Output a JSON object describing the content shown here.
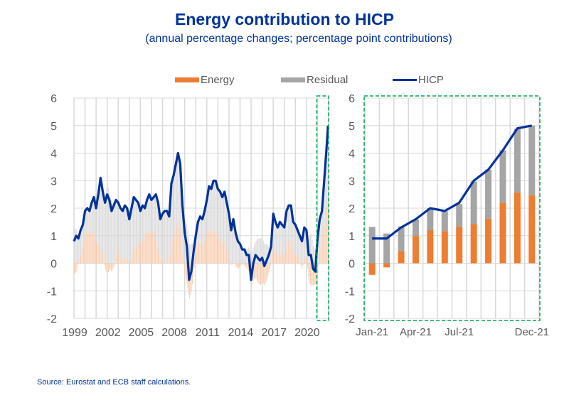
{
  "title": "Energy contribution to HICP",
  "subtitle": "(annual percentage changes; percentage point contributions)",
  "legend": [
    {
      "label": "Energy",
      "type": "bar",
      "color": "#ED7D31"
    },
    {
      "label": "Residual",
      "type": "bar",
      "color": "#A5A5A5"
    },
    {
      "label": "HICP",
      "type": "line",
      "color": "#003299"
    }
  ],
  "source": "Source: Eurostat and ECB staff calculations.",
  "colors": {
    "energy": "#ED7D31",
    "energy_light": "#F8CBAD",
    "residual": "#A5A5A5",
    "residual_light": "#D9D9D9",
    "hicp": "#003299",
    "highlight": "#00A651",
    "grid": "#D9D9D9",
    "axis_text": "#595959"
  },
  "chart_data": [
    {
      "type": "bar",
      "subtype": "stacked bar with line overlay (monthly)",
      "title": "",
      "xlabel": "",
      "ylabel": "",
      "ylim": [
        -2,
        6
      ],
      "yticks": [
        6,
        5,
        4,
        3,
        2,
        1,
        0,
        -1,
        -2
      ],
      "xlim": [
        1999,
        2022
      ],
      "xtick_labels": [
        "1999",
        "2002",
        "2005",
        "2008",
        "2011",
        "2014",
        "2017",
        "2020"
      ],
      "grid": true,
      "legend_position": "top",
      "highlight_box": "2021 (dashed green, corresponds to right panel)",
      "hicp_series": {
        "name": "HICP",
        "points": [
          [
            1999.0,
            0.8
          ],
          [
            1999.2,
            1.0
          ],
          [
            1999.4,
            0.9
          ],
          [
            1999.6,
            1.2
          ],
          [
            1999.8,
            1.4
          ],
          [
            2000.0,
            1.9
          ],
          [
            2000.2,
            2.0
          ],
          [
            2000.4,
            1.9
          ],
          [
            2000.6,
            2.2
          ],
          [
            2000.8,
            2.4
          ],
          [
            2001.0,
            2.0
          ],
          [
            2001.2,
            2.5
          ],
          [
            2001.4,
            3.1
          ],
          [
            2001.6,
            2.6
          ],
          [
            2001.8,
            2.2
          ],
          [
            2002.0,
            2.5
          ],
          [
            2002.2,
            2.3
          ],
          [
            2002.4,
            1.9
          ],
          [
            2002.6,
            2.1
          ],
          [
            2002.8,
            2.3
          ],
          [
            2003.0,
            2.2
          ],
          [
            2003.2,
            2.0
          ],
          [
            2003.4,
            1.9
          ],
          [
            2003.6,
            2.1
          ],
          [
            2003.8,
            2.0
          ],
          [
            2004.0,
            1.6
          ],
          [
            2004.2,
            2.0
          ],
          [
            2004.4,
            2.4
          ],
          [
            2004.6,
            2.3
          ],
          [
            2004.8,
            2.2
          ],
          [
            2005.0,
            1.9
          ],
          [
            2005.2,
            2.1
          ],
          [
            2005.4,
            2.0
          ],
          [
            2005.6,
            2.3
          ],
          [
            2005.8,
            2.5
          ],
          [
            2006.0,
            2.3
          ],
          [
            2006.2,
            2.4
          ],
          [
            2006.4,
            2.5
          ],
          [
            2006.6,
            2.2
          ],
          [
            2006.8,
            1.6
          ],
          [
            2007.0,
            1.8
          ],
          [
            2007.2,
            1.9
          ],
          [
            2007.4,
            1.9
          ],
          [
            2007.6,
            1.7
          ],
          [
            2007.8,
            2.9
          ],
          [
            2008.0,
            3.2
          ],
          [
            2008.2,
            3.6
          ],
          [
            2008.4,
            4.0
          ],
          [
            2008.6,
            3.6
          ],
          [
            2008.8,
            2.1
          ],
          [
            2009.0,
            1.1
          ],
          [
            2009.2,
            0.6
          ],
          [
            2009.4,
            -0.6
          ],
          [
            2009.6,
            -0.3
          ],
          [
            2009.8,
            0.4
          ],
          [
            2010.0,
            1.0
          ],
          [
            2010.2,
            1.5
          ],
          [
            2010.4,
            1.7
          ],
          [
            2010.6,
            1.6
          ],
          [
            2010.8,
            1.9
          ],
          [
            2011.0,
            2.3
          ],
          [
            2011.2,
            2.8
          ],
          [
            2011.4,
            2.7
          ],
          [
            2011.6,
            3.0
          ],
          [
            2011.8,
            3.0
          ],
          [
            2012.0,
            2.7
          ],
          [
            2012.2,
            2.6
          ],
          [
            2012.4,
            2.4
          ],
          [
            2012.6,
            2.6
          ],
          [
            2012.8,
            2.2
          ],
          [
            2013.0,
            1.8
          ],
          [
            2013.2,
            1.2
          ],
          [
            2013.4,
            1.6
          ],
          [
            2013.6,
            1.1
          ],
          [
            2013.8,
            0.8
          ],
          [
            2014.0,
            0.7
          ],
          [
            2014.2,
            0.5
          ],
          [
            2014.4,
            0.5
          ],
          [
            2014.6,
            0.3
          ],
          [
            2014.8,
            0.3
          ],
          [
            2015.0,
            -0.6
          ],
          [
            2015.2,
            0.0
          ],
          [
            2015.4,
            0.3
          ],
          [
            2015.6,
            0.2
          ],
          [
            2015.8,
            0.1
          ],
          [
            2016.0,
            0.2
          ],
          [
            2016.2,
            -0.1
          ],
          [
            2016.4,
            0.1
          ],
          [
            2016.6,
            0.3
          ],
          [
            2016.8,
            0.6
          ],
          [
            2017.0,
            1.8
          ],
          [
            2017.2,
            1.5
          ],
          [
            2017.4,
            1.3
          ],
          [
            2017.6,
            1.5
          ],
          [
            2017.8,
            1.4
          ],
          [
            2018.0,
            1.3
          ],
          [
            2018.2,
            1.9
          ],
          [
            2018.4,
            2.1
          ],
          [
            2018.6,
            2.1
          ],
          [
            2018.8,
            1.5
          ],
          [
            2019.0,
            1.4
          ],
          [
            2019.2,
            1.2
          ],
          [
            2019.4,
            1.0
          ],
          [
            2019.6,
            0.8
          ],
          [
            2019.8,
            1.3
          ],
          [
            2020.0,
            1.2
          ],
          [
            2020.2,
            0.3
          ],
          [
            2020.4,
            0.3
          ],
          [
            2020.6,
            -0.2
          ],
          [
            2020.8,
            -0.3
          ],
          [
            2021.0,
            0.9
          ],
          [
            2021.2,
            1.6
          ],
          [
            2021.4,
            1.9
          ],
          [
            2021.6,
            3.0
          ],
          [
            2021.8,
            4.1
          ],
          [
            2021.95,
            5.0
          ]
        ]
      },
      "energy_series": {
        "name": "Energy",
        "points": [
          [
            1999.0,
            -0.4
          ],
          [
            1999.2,
            -0.3
          ],
          [
            1999.4,
            0.1
          ],
          [
            1999.6,
            0.3
          ],
          [
            1999.8,
            0.6
          ],
          [
            2000.0,
            1.0
          ],
          [
            2000.2,
            1.2
          ],
          [
            2000.4,
            1.1
          ],
          [
            2000.6,
            1.1
          ],
          [
            2000.8,
            1.2
          ],
          [
            2001.0,
            0.8
          ],
          [
            2001.2,
            0.6
          ],
          [
            2001.4,
            0.6
          ],
          [
            2001.6,
            0.3
          ],
          [
            2001.8,
            -0.2
          ],
          [
            2002.0,
            -0.4
          ],
          [
            2002.2,
            -0.2
          ],
          [
            2002.4,
            -0.3
          ],
          [
            2002.6,
            -0.1
          ],
          [
            2002.8,
            0.3
          ],
          [
            2003.0,
            0.6
          ],
          [
            2003.2,
            0.2
          ],
          [
            2003.4,
            0.1
          ],
          [
            2003.6,
            0.2
          ],
          [
            2003.8,
            0.1
          ],
          [
            2004.0,
            -0.1
          ],
          [
            2004.2,
            0.3
          ],
          [
            2004.4,
            0.5
          ],
          [
            2004.6,
            0.6
          ],
          [
            2004.8,
            0.8
          ],
          [
            2005.0,
            0.7
          ],
          [
            2005.2,
            0.9
          ],
          [
            2005.4,
            1.0
          ],
          [
            2005.6,
            1.2
          ],
          [
            2005.8,
            1.1
          ],
          [
            2006.0,
            1.1
          ],
          [
            2006.2,
            1.2
          ],
          [
            2006.4,
            0.9
          ],
          [
            2006.6,
            0.4
          ],
          [
            2006.8,
            0.2
          ],
          [
            2007.0,
            0.1
          ],
          [
            2007.2,
            0.1
          ],
          [
            2007.4,
            0.0
          ],
          [
            2007.6,
            0.0
          ],
          [
            2007.8,
            0.8
          ],
          [
            2008.0,
            1.0
          ],
          [
            2008.2,
            1.3
          ],
          [
            2008.4,
            1.5
          ],
          [
            2008.6,
            1.1
          ],
          [
            2008.8,
            0.2
          ],
          [
            2009.0,
            -0.4
          ],
          [
            2009.2,
            -0.8
          ],
          [
            2009.4,
            -1.3
          ],
          [
            2009.6,
            -1.0
          ],
          [
            2009.8,
            -0.3
          ],
          [
            2010.0,
            0.6
          ],
          [
            2010.2,
            0.8
          ],
          [
            2010.4,
            0.7
          ],
          [
            2010.6,
            0.7
          ],
          [
            2010.8,
            0.9
          ],
          [
            2011.0,
            1.1
          ],
          [
            2011.2,
            1.2
          ],
          [
            2011.4,
            1.1
          ],
          [
            2011.6,
            1.2
          ],
          [
            2011.8,
            1.1
          ],
          [
            2012.0,
            0.9
          ],
          [
            2012.2,
            0.9
          ],
          [
            2012.4,
            0.7
          ],
          [
            2012.6,
            0.8
          ],
          [
            2012.8,
            0.4
          ],
          [
            2013.0,
            0.1
          ],
          [
            2013.2,
            -0.1
          ],
          [
            2013.4,
            0.1
          ],
          [
            2013.6,
            -0.1
          ],
          [
            2013.8,
            -0.2
          ],
          [
            2014.0,
            -0.1
          ],
          [
            2014.2,
            0.0
          ],
          [
            2014.4,
            -0.1
          ],
          [
            2014.6,
            -0.2
          ],
          [
            2014.8,
            -0.3
          ],
          [
            2015.0,
            -0.9
          ],
          [
            2015.2,
            -0.6
          ],
          [
            2015.4,
            -0.5
          ],
          [
            2015.6,
            -0.7
          ],
          [
            2015.8,
            -0.8
          ],
          [
            2016.0,
            -0.7
          ],
          [
            2016.2,
            -0.8
          ],
          [
            2016.4,
            -0.6
          ],
          [
            2016.6,
            -0.3
          ],
          [
            2016.8,
            0.0
          ],
          [
            2017.0,
            0.7
          ],
          [
            2017.2,
            0.5
          ],
          [
            2017.4,
            0.2
          ],
          [
            2017.6,
            0.3
          ],
          [
            2017.8,
            0.4
          ],
          [
            2018.0,
            0.3
          ],
          [
            2018.2,
            0.6
          ],
          [
            2018.4,
            0.9
          ],
          [
            2018.6,
            0.8
          ],
          [
            2018.8,
            0.4
          ],
          [
            2019.0,
            0.2
          ],
          [
            2019.2,
            0.3
          ],
          [
            2019.4,
            0.0
          ],
          [
            2019.6,
            -0.2
          ],
          [
            2019.8,
            0.2
          ],
          [
            2020.0,
            0.2
          ],
          [
            2020.2,
            -0.7
          ],
          [
            2020.4,
            -0.8
          ],
          [
            2020.6,
            -0.8
          ],
          [
            2020.8,
            -0.8
          ],
          [
            2021.0,
            -0.4
          ],
          [
            2021.2,
            0.4
          ],
          [
            2021.4,
            1.2
          ],
          [
            2021.6,
            1.4
          ],
          [
            2021.8,
            2.2
          ],
          [
            2021.95,
            2.5
          ]
        ]
      }
    },
    {
      "type": "bar",
      "subtype": "stacked bar with line overlay (monthly 2021)",
      "title": "",
      "xlabel": "",
      "ylabel": "",
      "ylim": [
        -2,
        6
      ],
      "yticks": [
        6,
        5,
        4,
        3,
        2,
        1,
        0,
        -1,
        -2
      ],
      "categories": [
        "Jan-21",
        "Feb-21",
        "Mar-21",
        "Apr-21",
        "May-21",
        "Jun-21",
        "Jul-21",
        "Aug-21",
        "Sep-21",
        "Oct-21",
        "Nov-21",
        "Dec-21"
      ],
      "xtick_labels": [
        "Jan-21",
        "Apr-21",
        "Jul-21",
        "Dec-21"
      ],
      "grid": true,
      "highlight_box": "dashed green border around plot",
      "series": [
        {
          "name": "Energy",
          "values": [
            -0.42,
            -0.15,
            0.44,
            0.99,
            1.2,
            1.17,
            1.33,
            1.42,
            1.62,
            2.2,
            2.57,
            2.47
          ]
        },
        {
          "name": "Residual",
          "values": [
            1.32,
            1.08,
            0.9,
            0.6,
            0.8,
            0.72,
            0.82,
            1.55,
            1.78,
            1.9,
            2.32,
            2.53
          ]
        },
        {
          "name": "HICP",
          "values": [
            0.9,
            0.9,
            1.3,
            1.6,
            2.0,
            1.9,
            2.2,
            3.0,
            3.4,
            4.1,
            4.9,
            5.0
          ]
        }
      ]
    }
  ]
}
